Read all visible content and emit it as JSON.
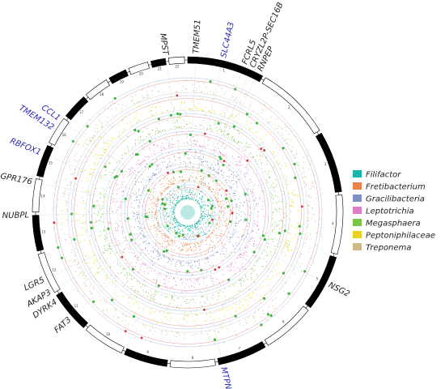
{
  "chart_data": {
    "type": "scatter",
    "layout": "circular manhattan plot",
    "title": "",
    "legend_position": "right",
    "series": [
      {
        "name": "Filifactor",
        "color": "#1bb5a9",
        "ring": 1
      },
      {
        "name": "Fretibacterium",
        "color": "#e8834a",
        "ring": 2
      },
      {
        "name": "Gracilibacteria",
        "color": "#7f90c9",
        "ring": 3
      },
      {
        "name": "Leptotrichia",
        "color": "#de7fc8",
        "ring": 4
      },
      {
        "name": "Megasphaera",
        "color": "#7cc443",
        "ring": 5
      },
      {
        "name": "Peptoniphilaceae",
        "color": "#e6d21f",
        "ring": 6
      },
      {
        "name": "Treponema",
        "color": "#cdb98a",
        "ring": 7
      }
    ],
    "gene_labels": [
      {
        "name": "MPST",
        "angle": -8,
        "highlight": false
      },
      {
        "name": "TMEM51",
        "angle": 3,
        "highlight": false
      },
      {
        "name": "SLC44A3",
        "angle": 13,
        "highlight": true
      },
      {
        "name": "FCRL5",
        "angle": 21,
        "highlight": false
      },
      {
        "name": "CRYZL2P-SEC16B",
        "angle": 24,
        "highlight": false
      },
      {
        "name": "RNPEP",
        "angle": 27,
        "highlight": false
      },
      {
        "name": "CCL1",
        "angle": -54,
        "highlight": true
      },
      {
        "name": "TMEM132",
        "angle": -58,
        "highlight": true
      },
      {
        "name": "RBFOX1",
        "angle": -68,
        "highlight": true
      },
      {
        "name": "GPR176",
        "angle": -79,
        "highlight": false
      },
      {
        "name": "NUBPL",
        "angle": -91,
        "highlight": false
      },
      {
        "name": "LGR5",
        "angle": -115,
        "highlight": false
      },
      {
        "name": "AKAP3",
        "angle": -120,
        "highlight": false
      },
      {
        "name": "DYRK4",
        "angle": -124,
        "highlight": false
      },
      {
        "name": "FAT3",
        "angle": -132,
        "highlight": false
      },
      {
        "name": "NSG2",
        "angle": 117,
        "highlight": false
      },
      {
        "name": "MTPN",
        "angle": 167,
        "highlight": true
      }
    ],
    "chromosomes": [
      "1",
      "2",
      "3",
      "4",
      "5",
      "6",
      "7",
      "8",
      "9",
      "10",
      "11",
      "12",
      "13",
      "14",
      "15",
      "16",
      "17",
      "18",
      "19",
      "20",
      "21",
      "22"
    ]
  }
}
